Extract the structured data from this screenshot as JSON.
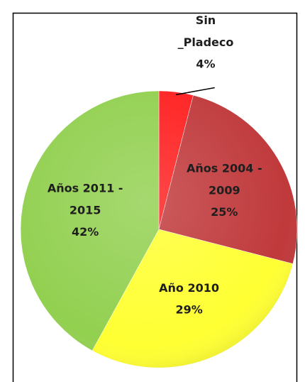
{
  "chart_data": {
    "type": "pie",
    "categories": [
      "Sin _Pladeco",
      "Años 2004 - 2009",
      "Año 2010",
      "Años 2011 - 2015"
    ],
    "values": [
      4,
      25,
      29,
      42
    ],
    "value_labels": [
      "4%",
      "25%",
      "29%",
      "42%"
    ],
    "colors": [
      "#ff1f1f",
      "#c0393b",
      "#ffff33",
      "#92d050"
    ]
  }
}
